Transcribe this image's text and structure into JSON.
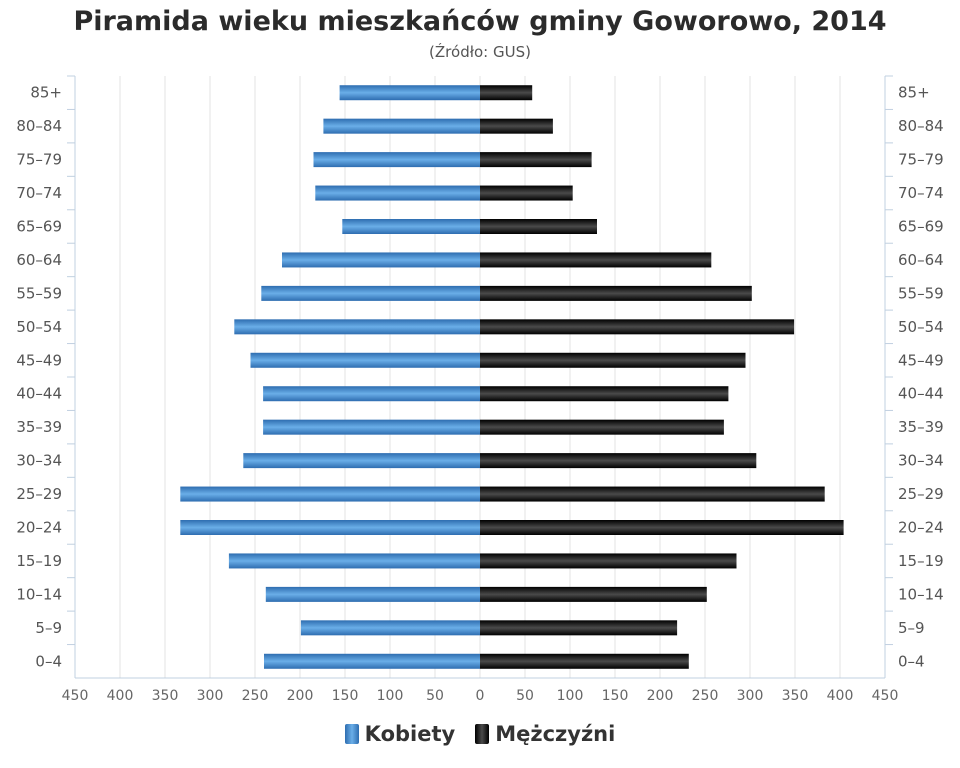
{
  "chart_data": {
    "type": "bar",
    "orientation": "horizontal-population-pyramid",
    "title": "Piramida wieku mieszkańców gminy Goworowo, 2014",
    "subtitle": "(Źródło: GUS)",
    "categories": [
      "85+",
      "80–84",
      "75–79",
      "70–74",
      "65–69",
      "60–64",
      "55–59",
      "50–54",
      "45–49",
      "40–44",
      "35–39",
      "30–34",
      "25–29",
      "20–24",
      "15–19",
      "10–14",
      "5–9",
      "0–4"
    ],
    "series": [
      {
        "name": "Kobiety",
        "color": "#4a8fd0",
        "values": [
          156,
          174,
          185,
          183,
          153,
          220,
          243,
          273,
          255,
          241,
          241,
          263,
          333,
          333,
          279,
          238,
          199,
          240
        ]
      },
      {
        "name": "Mężczyźni",
        "color": "#1a1a1a",
        "values": [
          58,
          81,
          124,
          103,
          130,
          257,
          302,
          349,
          295,
          276,
          271,
          307,
          383,
          404,
          285,
          252,
          219,
          232
        ]
      }
    ],
    "xlim": [
      -450,
      450
    ],
    "x_ticks": [
      "450",
      "400",
      "350",
      "300",
      "250",
      "200",
      "150",
      "100",
      "50",
      "0",
      "50",
      "100",
      "150",
      "200",
      "250",
      "300",
      "350",
      "400",
      "450"
    ],
    "grid": true,
    "legend_position": "bottom-center"
  }
}
